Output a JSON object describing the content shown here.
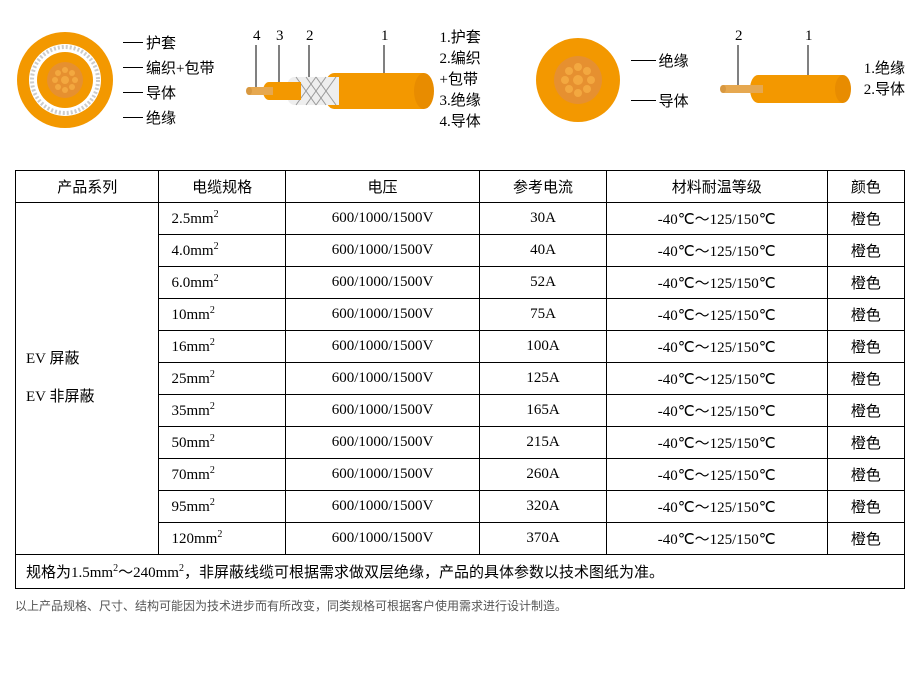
{
  "colors": {
    "orange": "#f39800",
    "orange_dark": "#e68300",
    "white": "#ffffff",
    "cream": "#fdf6e8",
    "gray": "#888888",
    "black": "#000000"
  },
  "diagram1": {
    "cross_labels": [
      "护套",
      "编织+包带",
      "导体",
      "绝缘"
    ],
    "legend": [
      "1.护套",
      "2.编织+包带",
      "3.绝缘",
      "4.导体"
    ],
    "tags": [
      "4",
      "3",
      "2",
      "1"
    ]
  },
  "diagram2": {
    "cross_labels": [
      "绝缘",
      "导体"
    ],
    "legend": [
      "1.绝缘",
      "2.导体"
    ],
    "tags": [
      "2",
      "1"
    ]
  },
  "table": {
    "headers": [
      "产品系列",
      "电缆规格",
      "电压",
      "参考电流",
      "材料耐温等级",
      "颜色"
    ],
    "series": [
      "EV 屏蔽",
      "EV 非屏蔽"
    ],
    "rows": [
      {
        "spec": "2.5mm²",
        "voltage": "600/1000/1500V",
        "current": "30A",
        "temp": "-40℃～125/150℃",
        "color": "橙色"
      },
      {
        "spec": "4.0mm²",
        "voltage": "600/1000/1500V",
        "current": "40A",
        "temp": "-40℃～125/150℃",
        "color": "橙色"
      },
      {
        "spec": "6.0mm²",
        "voltage": "600/1000/1500V",
        "current": "52A",
        "temp": "-40℃～125/150℃",
        "color": "橙色"
      },
      {
        "spec": "10mm²",
        "voltage": "600/1000/1500V",
        "current": "75A",
        "temp": "-40℃～125/150℃",
        "color": "橙色"
      },
      {
        "spec": "16mm²",
        "voltage": "600/1000/1500V",
        "current": "100A",
        "temp": "-40℃～125/150℃",
        "color": "橙色"
      },
      {
        "spec": "25mm²",
        "voltage": "600/1000/1500V",
        "current": "125A",
        "temp": "-40℃～125/150℃",
        "color": "橙色"
      },
      {
        "spec": "35mm²",
        "voltage": "600/1000/1500V",
        "current": "165A",
        "temp": "-40℃～125/150℃",
        "color": "橙色"
      },
      {
        "spec": "50mm²",
        "voltage": "600/1000/1500V",
        "current": "215A",
        "temp": "-40℃～125/150℃",
        "color": "橙色"
      },
      {
        "spec": "70mm²",
        "voltage": "600/1000/1500V",
        "current": "260A",
        "temp": "-40℃～125/150℃",
        "color": "橙色"
      },
      {
        "spec": "95mm²",
        "voltage": "600/1000/1500V",
        "current": "320A",
        "temp": "-40℃～125/150℃",
        "color": "橙色"
      },
      {
        "spec": "120mm²",
        "voltage": "600/1000/1500V",
        "current": "370A",
        "temp": "-40℃～125/150℃",
        "color": "橙色"
      }
    ],
    "note": "规格为1.5mm²～240mm²，非屏蔽线缆可根据需求做双层绝缘，产品的具体参数以技术图纸为准。"
  },
  "footnote": "以上产品规格、尺寸、结构可能因为技术进步而有所改变，同类规格可根据客户使用需求进行设计制造。"
}
